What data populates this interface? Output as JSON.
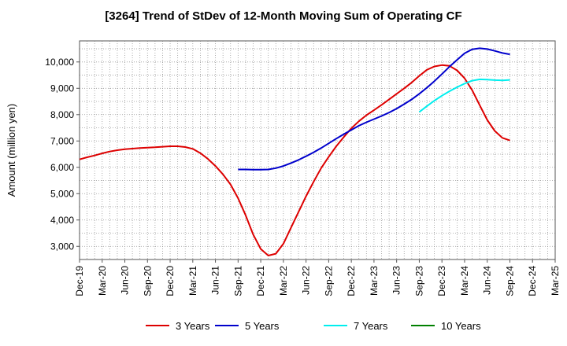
{
  "chart_data": {
    "type": "line",
    "title": "[3264]  Trend of StDev of 12-Month Moving Sum of Operating CF",
    "xlabel": "",
    "ylabel": "Amount (million yen)",
    "ylim": [
      2500,
      10800
    ],
    "y_ticks": [
      3000,
      4000,
      5000,
      6000,
      7000,
      8000,
      9000,
      10000
    ],
    "y_tick_labels": [
      "3,000",
      "4,000",
      "5,000",
      "6,000",
      "7,000",
      "8,000",
      "9,000",
      "10,000"
    ],
    "x_tick_labels": [
      "Dec-19",
      "Mar-20",
      "Jun-20",
      "Sep-20",
      "Dec-20",
      "Mar-21",
      "Jun-21",
      "Sep-21",
      "Dec-21",
      "Mar-22",
      "Jun-22",
      "Sep-22",
      "Dec-22",
      "Mar-23",
      "Jun-23",
      "Sep-23",
      "Dec-23",
      "Mar-24",
      "Jun-24",
      "Sep-24",
      "Dec-24",
      "Mar-25"
    ],
    "grid": true,
    "legend_position": "bottom",
    "series": [
      {
        "name": "3 Years",
        "color": "#dd0000",
        "x": [
          "Dec-19",
          "Jan-20",
          "Feb-20",
          "Mar-20",
          "Apr-20",
          "May-20",
          "Jun-20",
          "Jul-20",
          "Aug-20",
          "Sep-20",
          "Oct-20",
          "Nov-20",
          "Dec-20",
          "Jan-21",
          "Feb-21",
          "Mar-21",
          "Apr-21",
          "May-21",
          "Jun-21",
          "Jul-21",
          "Aug-21",
          "Sep-21",
          "Oct-21",
          "Nov-21",
          "Dec-21",
          "Jan-22",
          "Feb-22",
          "Mar-22",
          "Apr-22",
          "May-22",
          "Jun-22",
          "Jul-22",
          "Aug-22",
          "Sep-22",
          "Oct-22",
          "Nov-22",
          "Dec-22",
          "Jan-23",
          "Feb-23",
          "Mar-23",
          "Apr-23",
          "May-23",
          "Jun-23",
          "Jul-23",
          "Aug-23",
          "Sep-23",
          "Oct-23",
          "Nov-23",
          "Dec-23",
          "Jan-24",
          "Feb-24",
          "Mar-24",
          "Apr-24",
          "May-24",
          "Jun-24",
          "Jul-24",
          "Aug-24",
          "Sep-24"
        ],
        "values": [
          6300,
          6380,
          6450,
          6530,
          6600,
          6650,
          6690,
          6710,
          6730,
          6750,
          6760,
          6780,
          6800,
          6800,
          6770,
          6700,
          6540,
          6320,
          6050,
          5730,
          5350,
          4830,
          4180,
          3450,
          2900,
          2650,
          2720,
          3100,
          3700,
          4300,
          4900,
          5450,
          5970,
          6400,
          6800,
          7150,
          7480,
          7750,
          7980,
          8170,
          8370,
          8580,
          8790,
          9000,
          9220,
          9470,
          9700,
          9830,
          9880,
          9850,
          9680,
          9380,
          8930,
          8360,
          7800,
          7380,
          7120,
          7020
        ]
      },
      {
        "name": "5 Years",
        "color": "#0000cc",
        "x": [
          "Sep-21",
          "Oct-21",
          "Nov-21",
          "Dec-21",
          "Jan-22",
          "Feb-22",
          "Mar-22",
          "Apr-22",
          "May-22",
          "Jun-22",
          "Jul-22",
          "Aug-22",
          "Sep-22",
          "Oct-22",
          "Nov-22",
          "Dec-22",
          "Jan-23",
          "Feb-23",
          "Mar-23",
          "Apr-23",
          "May-23",
          "Jun-23",
          "Jul-23",
          "Aug-23",
          "Sep-23",
          "Oct-23",
          "Nov-23",
          "Dec-23",
          "Jan-24",
          "Feb-24",
          "Mar-24",
          "Apr-24",
          "May-24",
          "Jun-24",
          "Jul-24",
          "Aug-24",
          "Sep-24"
        ],
        "values": [
          5920,
          5920,
          5910,
          5910,
          5920,
          5970,
          6050,
          6160,
          6280,
          6420,
          6570,
          6730,
          6910,
          7090,
          7260,
          7420,
          7580,
          7710,
          7830,
          7950,
          8080,
          8230,
          8400,
          8580,
          8790,
          9020,
          9270,
          9540,
          9820,
          10080,
          10330,
          10480,
          10520,
          10490,
          10420,
          10340,
          10290
        ]
      },
      {
        "name": "7 Years",
        "color": "#00eeee",
        "x": [
          "Sep-23",
          "Oct-23",
          "Nov-23",
          "Dec-23",
          "Jan-24",
          "Feb-24",
          "Mar-24",
          "Apr-24",
          "May-24",
          "Jun-24",
          "Jul-24",
          "Aug-24",
          "Sep-24"
        ],
        "values": [
          8100,
          8320,
          8530,
          8720,
          8890,
          9040,
          9180,
          9290,
          9340,
          9330,
          9310,
          9300,
          9320
        ]
      },
      {
        "name": "10 Years",
        "color": "#008000",
        "x": [],
        "values": []
      }
    ]
  }
}
